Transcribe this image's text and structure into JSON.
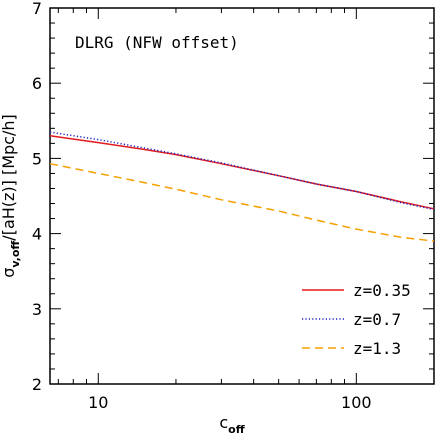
{
  "chart_data": {
    "type": "line",
    "title": "DLRG (NFW offset)",
    "xlabel": "c",
    "xlabel_sub": "off",
    "ylabel_sigma": "σ",
    "ylabel_sub": "v,off",
    "ylabel_rest": "/[aH(z)] [Mpc/h]",
    "xscale": "log",
    "xlim": [
      6.5,
      200
    ],
    "ylim": [
      2,
      7
    ],
    "xticks_major": [
      10,
      100
    ],
    "xtick_labels": [
      "10",
      "100"
    ],
    "yticks_major": [
      2,
      3,
      4,
      5,
      6,
      7
    ],
    "ytick_labels": [
      "2",
      "3",
      "4",
      "5",
      "6",
      "7"
    ],
    "legend_position": "bottom-right",
    "grid": false,
    "series": [
      {
        "name": "z=0.35",
        "color": "#e31a1c",
        "style": "solid",
        "x": [
          6.5,
          10,
          15,
          20,
          30,
          50,
          70,
          100,
          150,
          200
        ],
        "y": [
          5.3,
          5.21,
          5.12,
          5.05,
          4.93,
          4.77,
          4.66,
          4.56,
          4.42,
          4.33
        ]
      },
      {
        "name": "z=0.7",
        "color": "#1f1fbf",
        "style": "dotted",
        "x": [
          6.5,
          10,
          15,
          20,
          30,
          50,
          70,
          100,
          150,
          200
        ],
        "y": [
          5.35,
          5.25,
          5.14,
          5.06,
          4.94,
          4.77,
          4.66,
          4.56,
          4.41,
          4.32
        ]
      },
      {
        "name": "z=1.3",
        "color": "#f5a000",
        "style": "dashed",
        "x": [
          6.5,
          10,
          15,
          20,
          30,
          50,
          70,
          100,
          150,
          200
        ],
        "y": [
          4.93,
          4.8,
          4.68,
          4.59,
          4.45,
          4.3,
          4.18,
          4.06,
          3.95,
          3.9
        ]
      }
    ]
  }
}
